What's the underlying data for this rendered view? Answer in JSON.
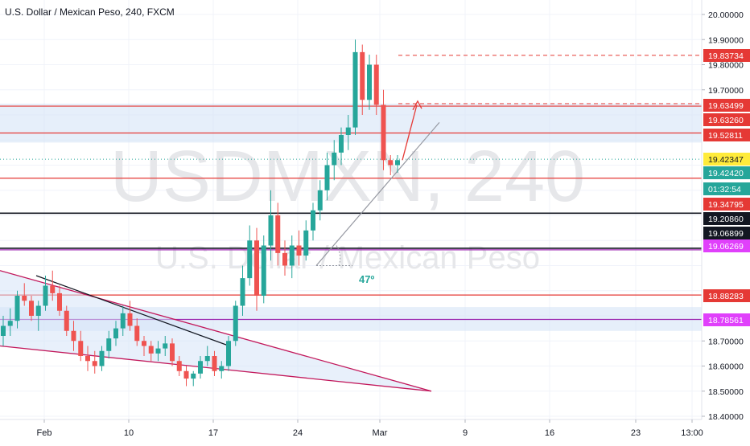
{
  "header": {
    "symbol_title": "U.S. Dollar / Mexican Peso, 240, FXCM"
  },
  "watermark": {
    "ticker": "USDMXN, 240",
    "name": "U.S. Dollar / Mexican Peso"
  },
  "annotations": {
    "angle_label": "47º"
  },
  "colors": {
    "up": "#26a69a",
    "down": "#ef5350",
    "red_line": "#e53935",
    "black_line": "#131722",
    "purple_line": "#9c27b0",
    "zone_fill": "#d6e4f7",
    "axis_text": "#131722"
  },
  "chart_data": {
    "type": "candlestick",
    "title": "U.S. Dollar / Mexican Peso, 240, FXCM",
    "ylim": [
      18.4,
      20.05
    ],
    "y_ticks": [
      "20.00000",
      "19.90000",
      "19.80000",
      "19.70000",
      "18.70000",
      "18.60000",
      "18.50000",
      "18.40000"
    ],
    "x_tick_labels": [
      "Feb",
      "10",
      "17",
      "24",
      "Mar",
      "9",
      "16",
      "23",
      "13:00"
    ],
    "price_labels": [
      {
        "text": "19.83734",
        "value": 19.83734,
        "style": "red"
      },
      {
        "text": "19.63499",
        "value": 19.63499,
        "style": "red"
      },
      {
        "text": "19.63260",
        "value": 19.6326,
        "style": "red"
      },
      {
        "text": "19.52811",
        "value": 19.52811,
        "style": "red"
      },
      {
        "text": "19.42347",
        "value": 19.42347,
        "style": "yellow"
      },
      {
        "text": "19.42420",
        "value": 19.4242,
        "style": "green"
      },
      {
        "text": "01:32:54",
        "value": 19.385,
        "style": "green"
      },
      {
        "text": "19.34795",
        "value": 19.34795,
        "style": "red"
      },
      {
        "text": "19.20860",
        "value": 19.2086,
        "style": "black"
      },
      {
        "text": "19.06899",
        "value": 19.06899,
        "style": "black"
      },
      {
        "text": "19.06269",
        "value": 19.06269,
        "style": "magenta"
      },
      {
        "text": "18.88283",
        "value": 18.88283,
        "style": "red"
      },
      {
        "text": "18.78561",
        "value": 18.78561,
        "style": "magenta"
      }
    ],
    "horizontal_lines": [
      {
        "value": 19.63499,
        "color": "red"
      },
      {
        "value": 19.52811,
        "color": "red"
      },
      {
        "value": 19.34795,
        "color": "red"
      },
      {
        "value": 19.2086,
        "color": "black"
      },
      {
        "value": 19.06899,
        "color": "black"
      },
      {
        "value": 19.06269,
        "color": "purple"
      },
      {
        "value": 18.88283,
        "color": "red"
      },
      {
        "value": 18.78561,
        "color": "purple"
      }
    ],
    "zones": [
      {
        "from": 19.49,
        "to": 19.645
      },
      {
        "from": 18.74,
        "to": 18.835
      }
    ],
    "candles": [
      [
        18.72,
        18.8,
        18.68,
        18.76
      ],
      [
        18.76,
        18.83,
        18.72,
        18.78
      ],
      [
        18.78,
        18.9,
        18.75,
        18.88
      ],
      [
        18.88,
        18.93,
        18.84,
        18.86
      ],
      [
        18.86,
        18.88,
        18.78,
        18.8
      ],
      [
        18.8,
        18.86,
        18.74,
        18.84
      ],
      [
        18.84,
        18.96,
        18.82,
        18.92
      ],
      [
        18.92,
        18.98,
        18.86,
        18.89
      ],
      [
        18.89,
        18.92,
        18.8,
        18.82
      ],
      [
        18.82,
        18.84,
        18.72,
        18.74
      ],
      [
        18.74,
        18.78,
        18.66,
        18.7
      ],
      [
        18.7,
        18.74,
        18.62,
        18.64
      ],
      [
        18.64,
        18.68,
        18.58,
        18.62
      ],
      [
        18.62,
        18.66,
        18.57,
        18.6
      ],
      [
        18.6,
        18.68,
        18.58,
        18.66
      ],
      [
        18.66,
        18.74,
        18.63,
        18.71
      ],
      [
        18.71,
        18.78,
        18.68,
        18.75
      ],
      [
        18.75,
        18.84,
        18.72,
        18.81
      ],
      [
        18.81,
        18.86,
        18.74,
        18.76
      ],
      [
        18.76,
        18.79,
        18.68,
        18.7
      ],
      [
        18.7,
        18.72,
        18.64,
        18.68
      ],
      [
        18.68,
        18.7,
        18.62,
        18.65
      ],
      [
        18.65,
        18.7,
        18.62,
        18.67
      ],
      [
        18.67,
        18.72,
        18.64,
        18.69
      ],
      [
        18.69,
        18.71,
        18.6,
        18.62
      ],
      [
        18.62,
        18.64,
        18.56,
        18.58
      ],
      [
        18.58,
        18.6,
        18.52,
        18.55
      ],
      [
        18.55,
        18.58,
        18.52,
        18.57
      ],
      [
        18.57,
        18.64,
        18.55,
        18.62
      ],
      [
        18.62,
        18.68,
        18.6,
        18.64
      ],
      [
        18.64,
        18.66,
        18.56,
        18.58
      ],
      [
        18.58,
        18.62,
        18.55,
        18.6
      ],
      [
        18.6,
        18.72,
        18.58,
        18.7
      ],
      [
        18.7,
        18.86,
        18.68,
        18.84
      ],
      [
        18.84,
        19.0,
        18.8,
        18.95
      ],
      [
        18.95,
        19.16,
        18.92,
        19.1
      ],
      [
        19.1,
        19.15,
        18.82,
        18.88
      ],
      [
        18.88,
        19.12,
        18.85,
        19.08
      ],
      [
        19.08,
        19.3,
        19.02,
        19.2
      ],
      [
        19.2,
        19.25,
        19.0,
        19.05
      ],
      [
        19.05,
        19.1,
        18.96,
        19.0
      ],
      [
        19.0,
        19.12,
        18.95,
        19.08
      ],
      [
        19.08,
        19.14,
        19.0,
        19.04
      ],
      [
        19.04,
        19.18,
        19.02,
        19.14
      ],
      [
        19.14,
        19.25,
        19.1,
        19.22
      ],
      [
        19.22,
        19.34,
        19.18,
        19.3
      ],
      [
        19.3,
        19.45,
        19.26,
        19.4
      ],
      [
        19.4,
        19.5,
        19.34,
        19.45
      ],
      [
        19.45,
        19.55,
        19.4,
        19.52
      ],
      [
        19.52,
        19.6,
        19.46,
        19.55
      ],
      [
        19.55,
        19.9,
        19.52,
        19.85
      ],
      [
        19.85,
        19.88,
        19.6,
        19.66
      ],
      [
        19.66,
        19.84,
        19.62,
        19.8
      ],
      [
        19.8,
        19.84,
        19.6,
        19.64
      ],
      [
        19.64,
        19.7,
        19.38,
        19.42
      ],
      [
        19.42,
        19.44,
        19.36,
        19.4
      ],
      [
        19.4,
        19.44,
        19.37,
        19.42
      ]
    ]
  }
}
